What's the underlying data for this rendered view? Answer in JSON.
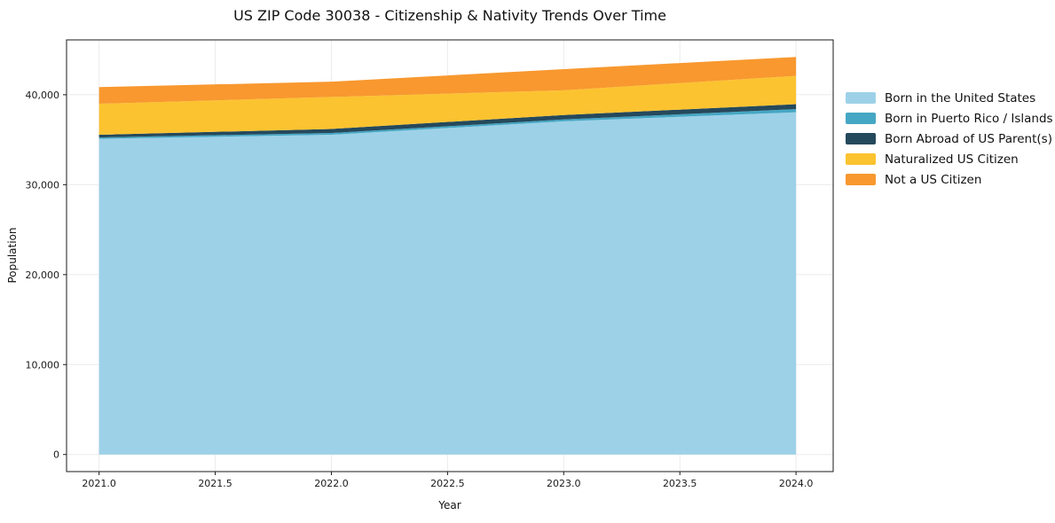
{
  "title": "US ZIP Code 30038 - Citizenship & Nativity Trends Over Time",
  "chart_data": {
    "type": "area",
    "stacked": true,
    "title": "US ZIP Code 30038 - Citizenship & Nativity Trends Over Time",
    "xlabel": "Year",
    "ylabel": "Population",
    "x": [
      2021,
      2022,
      2023,
      2024
    ],
    "series": [
      {
        "name": "Born in the United States",
        "color": "#9dd1e8",
        "values": [
          35100,
          35550,
          37050,
          38050
        ]
      },
      {
        "name": "Born in Puerto Rico / Islands",
        "color": "#45a7c4",
        "values": [
          150,
          200,
          200,
          350
        ]
      },
      {
        "name": "Born Abroad of US Parent(s)",
        "color": "#25495c",
        "values": [
          300,
          450,
          500,
          550
        ]
      },
      {
        "name": "Naturalized US Citizen",
        "color": "#fcc330",
        "values": [
          3450,
          3550,
          2750,
          3150
        ]
      },
      {
        "name": "Not a US Citizen",
        "color": "#f8982f",
        "values": [
          1850,
          1700,
          2350,
          2100
        ]
      }
    ],
    "totals": [
      40850,
      41450,
      42850,
      44200
    ],
    "xlim": [
      2020.86,
      2024.16
    ],
    "ylim": [
      -1900,
      46100
    ],
    "xticks": {
      "values": [
        2021.0,
        2021.5,
        2022.0,
        2022.5,
        2023.0,
        2023.5,
        2024.0
      ],
      "labels": [
        "2021.0",
        "2021.5",
        "2022.0",
        "2022.5",
        "2023.0",
        "2023.5",
        "2024.0"
      ]
    },
    "yticks": {
      "values": [
        0,
        10000,
        20000,
        30000,
        40000
      ],
      "labels": [
        "0",
        "10,000",
        "20,000",
        "30,000",
        "40,000"
      ]
    },
    "grid": true,
    "grid_color": "#ebebeb",
    "spine_color": "#1a1a1a",
    "legend_position": "right outside"
  }
}
